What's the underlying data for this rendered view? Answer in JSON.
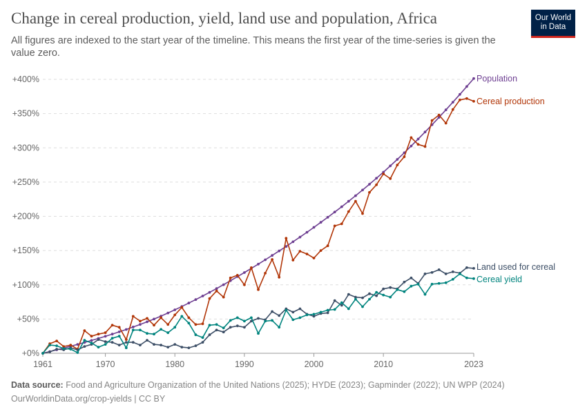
{
  "header": {
    "title": "Change in cereal production, yield, land use and population, Africa",
    "subtitle": "All figures are indexed to the start year of the timeline. This means the first year of the time-series is given the value zero."
  },
  "logo": {
    "line1": "Our World",
    "line2": "in Data"
  },
  "footer": {
    "source_label": "Data source:",
    "source_text": "Food and Agriculture Organization of the United Nations (2025); HYDE (2023); Gapminder (2022); UN WPP (2024)",
    "url_text": "OurWorldinData.org/crop-yields | CC BY"
  },
  "chart_data": {
    "type": "line",
    "x_start": 1961,
    "x_end": 2023,
    "xlim": [
      1961,
      2023
    ],
    "ylim": [
      0,
      410
    ],
    "x_ticks": [
      "1961",
      "1970",
      "1980",
      "1990",
      "2000",
      "2010",
      "2023"
    ],
    "y_ticks": [
      "+0%",
      "+50%",
      "+100%",
      "+150%",
      "+200%",
      "+250%",
      "+300%",
      "+350%",
      "+400%"
    ],
    "grid": true,
    "legend": "line-end labels",
    "series": [
      {
        "name": "Population",
        "color": "#6d3e91",
        "values": [
          0,
          2.5,
          5,
          7.6,
          10.3,
          13,
          15.8,
          18.7,
          21.7,
          24.8,
          28,
          31.3,
          34.8,
          38.4,
          42.1,
          45.9,
          50,
          54.3,
          58.8,
          63.5,
          68.3,
          73.3,
          78.4,
          83.6,
          89,
          94.5,
          100.2,
          106,
          111.9,
          117.9,
          124,
          130.2,
          136.5,
          142.9,
          149.4,
          156,
          162.8,
          169.7,
          176.7,
          183.9,
          191.2,
          198.6,
          206.2,
          214,
          222,
          230.1,
          238.4,
          246.9,
          255.6,
          264.5,
          273.7,
          283.1,
          292.8,
          302.7,
          312.8,
          323.1,
          333.7,
          344.5,
          355.5,
          366.7,
          378,
          389.5,
          401.2
        ]
      },
      {
        "name": "Cereal production",
        "color": "#b13507",
        "values": [
          0,
          14,
          18,
          10,
          12,
          6,
          33,
          25,
          28,
          30,
          41,
          38,
          20,
          54,
          47,
          51,
          41,
          52,
          42,
          56,
          67,
          52,
          42,
          43,
          80,
          91,
          82,
          110,
          114,
          100,
          125,
          93,
          117,
          137,
          111,
          168,
          136,
          149,
          145,
          139,
          150,
          157,
          186,
          189,
          207,
          222,
          204,
          235,
          246,
          262,
          255,
          275,
          287,
          315,
          305,
          302,
          340,
          348,
          336,
          356,
          370,
          372,
          368
        ]
      },
      {
        "name": "Land used for cereal",
        "color": "#3c4e66",
        "values": [
          0,
          2,
          6,
          5,
          8,
          5,
          10,
          13,
          20,
          17,
          16,
          12,
          16,
          16,
          12,
          19,
          13,
          12,
          9,
          13,
          9,
          8,
          11,
          16,
          27,
          34,
          31,
          38,
          40,
          38,
          47,
          51,
          49,
          61,
          55,
          65,
          60,
          65,
          57,
          54,
          58,
          59,
          77,
          70,
          86,
          82,
          81,
          87,
          84,
          94,
          96,
          94,
          104,
          110,
          102,
          116,
          118,
          122,
          116,
          119,
          117,
          125,
          124
        ]
      },
      {
        "name": "Cereal yield",
        "color": "#00847e",
        "values": [
          0,
          12,
          11,
          7,
          6,
          1,
          19,
          15,
          9,
          13,
          22,
          25,
          8,
          34,
          34,
          29,
          28,
          35,
          30,
          38,
          54,
          44,
          27,
          23,
          41,
          42,
          37,
          48,
          52,
          47,
          52,
          29,
          47,
          48,
          38,
          63,
          49,
          52,
          56,
          57,
          60,
          63,
          64,
          74,
          65,
          79,
          68,
          79,
          89,
          85,
          82,
          93,
          90,
          98,
          101,
          86,
          101,
          102,
          103,
          108,
          116,
          110,
          109
        ]
      }
    ]
  }
}
